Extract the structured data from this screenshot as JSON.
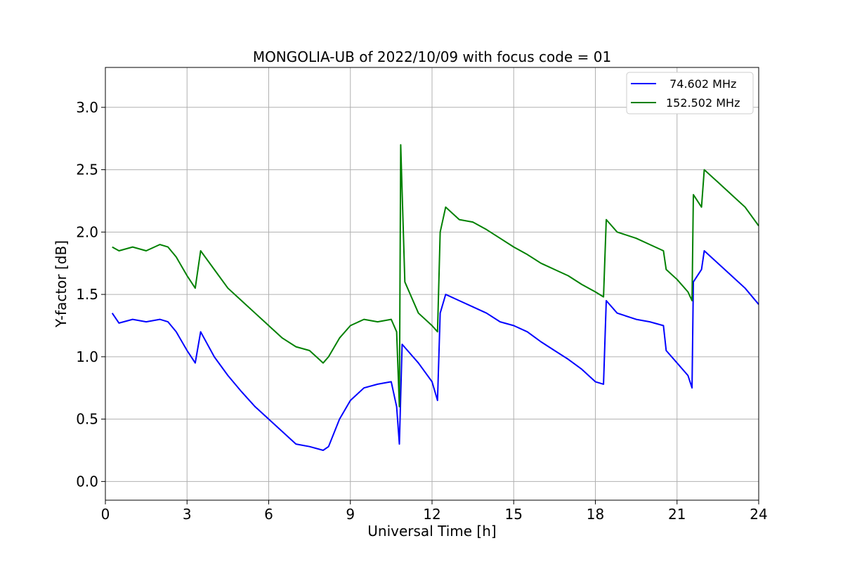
{
  "chart_data": {
    "type": "line",
    "title": "MONGOLIA-UB of 2022/10/09 with focus code = 01",
    "xlabel": "Universal Time [h]",
    "ylabel": "Y-factor [dB]",
    "xlim": [
      0,
      24
    ],
    "ylim": [
      -0.15,
      3.32
    ],
    "xticks": [
      0,
      3,
      6,
      9,
      12,
      15,
      18,
      21,
      24
    ],
    "xtick_labels": [
      "0",
      "3",
      "6",
      "9",
      "12",
      "15",
      "18",
      "21",
      "24"
    ],
    "yticks": [
      0.0,
      0.5,
      1.0,
      1.5,
      2.0,
      2.5,
      3.0
    ],
    "ytick_labels": [
      "0.0",
      "0.5",
      "1.0",
      "1.5",
      "2.0",
      "2.5",
      "3.0"
    ],
    "grid": true,
    "legend_position": "top-right",
    "series": [
      {
        "name": " 74.602 MHz",
        "color": "#0000ff",
        "x": [
          0.25,
          0.5,
          1.0,
          1.5,
          2.0,
          2.3,
          2.6,
          3.0,
          3.3,
          3.5,
          4.0,
          4.5,
          5.0,
          5.5,
          6.0,
          6.5,
          7.0,
          7.5,
          8.0,
          8.2,
          8.6,
          9.0,
          9.5,
          10.0,
          10.5,
          10.7,
          10.8,
          10.9,
          11.5,
          12.0,
          12.2,
          12.3,
          12.5,
          13.0,
          13.5,
          14.0,
          14.5,
          15.0,
          15.5,
          16.0,
          16.5,
          17.0,
          17.5,
          18.0,
          18.3,
          18.4,
          18.8,
          19.5,
          20.0,
          20.5,
          20.6,
          21.0,
          21.4,
          21.55,
          21.6,
          21.9,
          22.0,
          22.5,
          23.0,
          23.5,
          24.0
        ],
        "y": [
          1.35,
          1.27,
          1.3,
          1.28,
          1.3,
          1.28,
          1.2,
          1.05,
          0.95,
          1.2,
          1.0,
          0.85,
          0.72,
          0.6,
          0.5,
          0.4,
          0.3,
          0.28,
          0.25,
          0.28,
          0.5,
          0.65,
          0.75,
          0.78,
          0.8,
          0.6,
          0.3,
          1.1,
          0.95,
          0.8,
          0.65,
          1.35,
          1.5,
          1.45,
          1.4,
          1.35,
          1.28,
          1.25,
          1.2,
          1.12,
          1.05,
          0.98,
          0.9,
          0.8,
          0.78,
          1.45,
          1.35,
          1.3,
          1.28,
          1.25,
          1.05,
          0.95,
          0.85,
          0.75,
          1.6,
          1.7,
          1.85,
          1.75,
          1.65,
          1.55,
          1.42
        ]
      },
      {
        "name": "152.502 MHz",
        "color": "#008000",
        "x": [
          0.25,
          0.5,
          1.0,
          1.5,
          2.0,
          2.3,
          2.6,
          3.0,
          3.3,
          3.5,
          4.0,
          4.5,
          5.0,
          5.5,
          6.0,
          6.5,
          7.0,
          7.5,
          8.0,
          8.2,
          8.6,
          9.0,
          9.5,
          10.0,
          10.5,
          10.7,
          10.8,
          10.85,
          11.0,
          11.3,
          11.5,
          12.0,
          12.2,
          12.3,
          12.5,
          13.0,
          13.5,
          14.0,
          14.5,
          15.0,
          15.5,
          16.0,
          16.5,
          17.0,
          17.5,
          18.0,
          18.3,
          18.4,
          18.8,
          19.5,
          20.0,
          20.5,
          20.6,
          21.0,
          21.4,
          21.55,
          21.6,
          21.9,
          22.0,
          22.5,
          23.0,
          23.5,
          24.0
        ],
        "y": [
          1.88,
          1.85,
          1.88,
          1.85,
          1.9,
          1.88,
          1.8,
          1.65,
          1.55,
          1.85,
          1.7,
          1.55,
          1.45,
          1.35,
          1.25,
          1.15,
          1.08,
          1.05,
          0.95,
          1.0,
          1.15,
          1.25,
          1.3,
          1.28,
          1.3,
          1.2,
          0.6,
          2.7,
          1.6,
          1.45,
          1.35,
          1.25,
          1.2,
          2.0,
          2.2,
          2.1,
          2.08,
          2.02,
          1.95,
          1.88,
          1.82,
          1.75,
          1.7,
          1.65,
          1.58,
          1.52,
          1.48,
          2.1,
          2.0,
          1.95,
          1.9,
          1.85,
          1.7,
          1.62,
          1.52,
          1.45,
          2.3,
          2.2,
          2.5,
          2.4,
          2.3,
          2.2,
          2.05
        ]
      }
    ]
  }
}
